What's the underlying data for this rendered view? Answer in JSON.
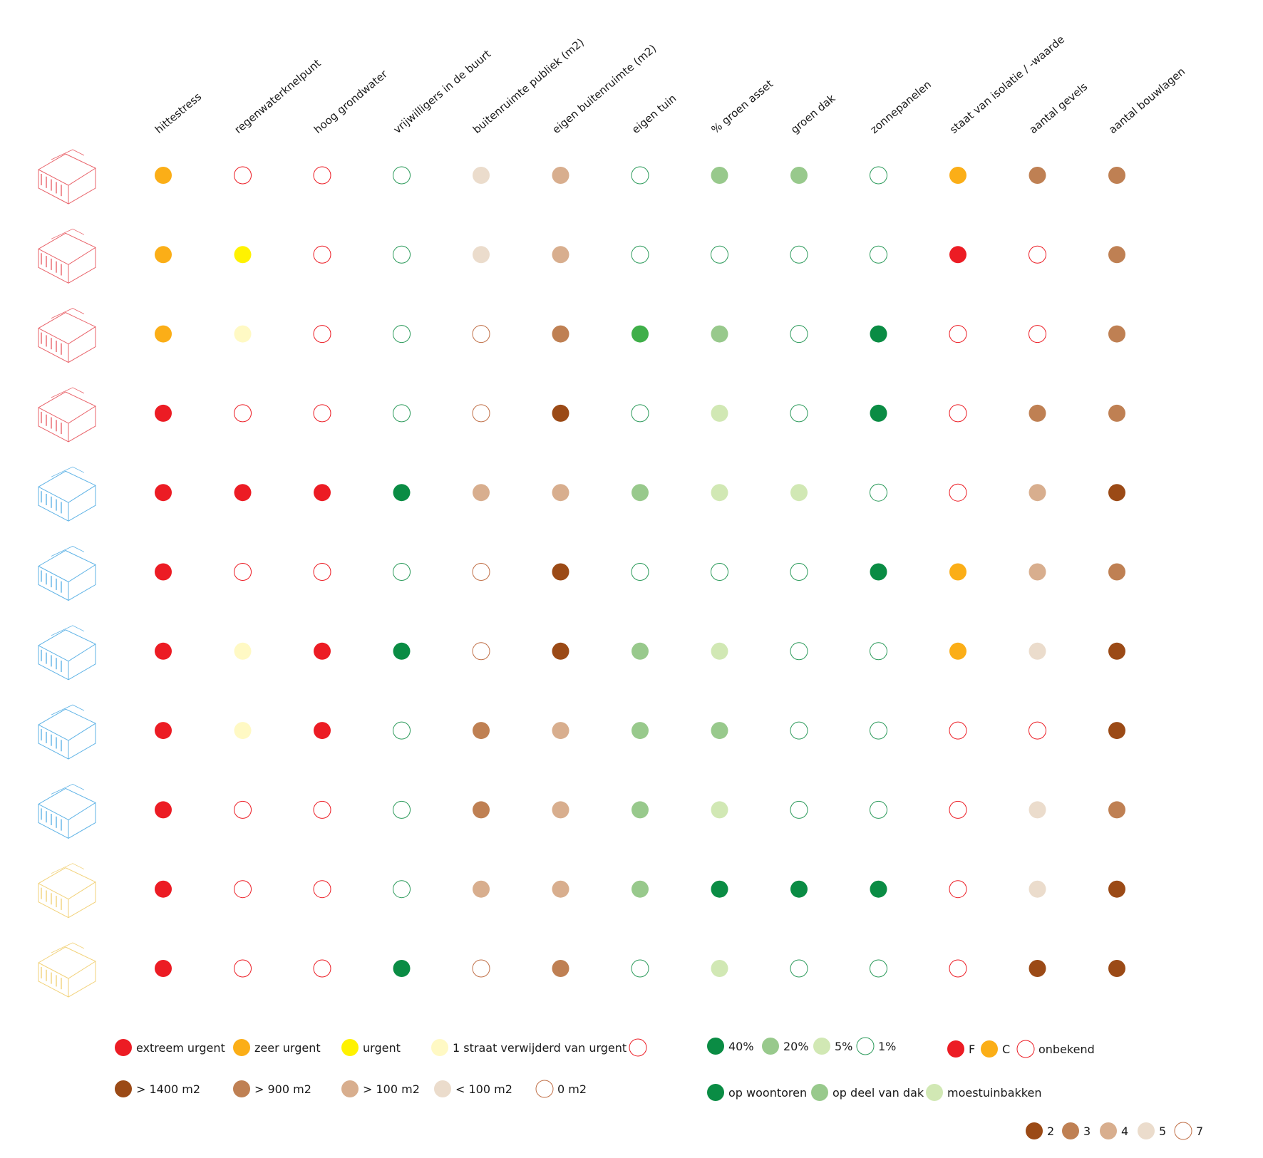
{
  "colors": {
    "red": "#ec1c24",
    "orange": "#fbae17",
    "yellow": "#fff200",
    "paleYellow": "#fff9c4",
    "brown1": "#9b4a16",
    "brown2": "#bf8053",
    "brown3": "#d8ae8e",
    "brown4": "#ebdccc",
    "green1": "#0a8c44",
    "green2": "#98c98c",
    "green3": "#d1e8b4",
    "greenBright": "#3faf49",
    "outlineRed": "#ec1c24",
    "outlineGreen": "#2b9a5a",
    "outlineBrown": "#c07048",
    "buildingRed": "#e9636a",
    "buildingBlue": "#5fb3e6",
    "buildingYellow": "#f2d27a"
  },
  "headers": [
    "hittestress",
    "regenwaterknelpunt",
    "hoog grondwater",
    "vrijwilligers in de buurt",
    "buitenruimte publiek (m2)",
    "eigen buitenruimte (m2)",
    "eigen tuin",
    "% groen asset",
    "groen dak",
    "zonnepanelen",
    "staat van isolatie / -waarde",
    "aantal gevels",
    "aantal bouwlagen"
  ],
  "chart_data": {
    "type": "heatmap",
    "columns": [
      "hittestress",
      "regenwaterknelpunt",
      "hoog grondwater",
      "vrijwilligers in de buurt",
      "buitenruimte publiek (m2)",
      "eigen buitenruimte (m2)",
      "eigen tuin",
      "% groen asset",
      "groen dak",
      "zonnepanelen",
      "staat van isolatie / -waarde",
      "aantal gevels",
      "aantal bouwlagen"
    ],
    "rows": [
      {
        "building": "red",
        "values": [
          "orange",
          "outlineRed",
          "outlineRed",
          "outlineGreen",
          "brown4",
          "brown3",
          "outlineGreen",
          "green2",
          "green2",
          "outlineGreen",
          "orange",
          "brown2",
          "brown2"
        ]
      },
      {
        "building": "red",
        "values": [
          "orange",
          "yellow",
          "outlineRed",
          "outlineGreen",
          "brown4",
          "brown3",
          "outlineGreen",
          "outlineGreen",
          "outlineGreen",
          "outlineGreen",
          "red",
          "outlineRed",
          "brown2"
        ]
      },
      {
        "building": "red",
        "values": [
          "orange",
          "paleYellow",
          "outlineRed",
          "outlineGreen",
          "outlineBrown",
          "brown2",
          "greenBright",
          "green2",
          "outlineGreen",
          "green1",
          "outlineRed",
          "outlineRed",
          "brown2"
        ]
      },
      {
        "building": "red",
        "values": [
          "red",
          "outlineRed",
          "outlineRed",
          "outlineGreen",
          "outlineBrown",
          "brown1",
          "outlineGreen",
          "green3",
          "outlineGreen",
          "green1",
          "outlineRed",
          "brown2",
          "brown2"
        ]
      },
      {
        "building": "blue",
        "values": [
          "red",
          "red",
          "red",
          "green1",
          "brown3",
          "brown3",
          "green2",
          "green3",
          "green3",
          "outlineGreen",
          "outlineRed",
          "brown3",
          "brown1"
        ]
      },
      {
        "building": "blue",
        "values": [
          "red",
          "outlineRed",
          "outlineRed",
          "outlineGreen",
          "outlineBrown",
          "brown1",
          "outlineGreen",
          "outlineGreen",
          "outlineGreen",
          "green1",
          "orange",
          "brown3",
          "brown2"
        ]
      },
      {
        "building": "blue",
        "values": [
          "red",
          "paleYellow",
          "red",
          "green1",
          "outlineBrown",
          "brown1",
          "green2",
          "green3",
          "outlineGreen",
          "outlineGreen",
          "orange",
          "brown4",
          "brown1"
        ]
      },
      {
        "building": "blue",
        "values": [
          "red",
          "paleYellow",
          "red",
          "outlineGreen",
          "brown2",
          "brown3",
          "green2",
          "green2",
          "outlineGreen",
          "outlineGreen",
          "outlineRed",
          "outlineRed",
          "brown1"
        ]
      },
      {
        "building": "blue",
        "values": [
          "red",
          "outlineRed",
          "outlineRed",
          "outlineGreen",
          "brown2",
          "brown3",
          "green2",
          "green3",
          "outlineGreen",
          "outlineGreen",
          "outlineRed",
          "brown4",
          "brown2"
        ]
      },
      {
        "building": "yellow",
        "values": [
          "red",
          "outlineRed",
          "outlineRed",
          "outlineGreen",
          "brown3",
          "brown3",
          "green2",
          "green1",
          "green1",
          "green1",
          "outlineRed",
          "brown4",
          "brown1"
        ]
      },
      {
        "building": "yellow",
        "values": [
          "red",
          "outlineRed",
          "outlineRed",
          "green1",
          "outlineBrown",
          "brown2",
          "outlineGreen",
          "green3",
          "outlineGreen",
          "outlineGreen",
          "outlineRed",
          "brown1",
          "brown1"
        ]
      }
    ]
  },
  "legend": {
    "urgency": [
      {
        "color": "red",
        "label": "extreem urgent"
      },
      {
        "color": "orange",
        "label": "zeer urgent"
      },
      {
        "color": "yellow",
        "label": "urgent"
      },
      {
        "color": "paleYellow",
        "label": "1 straat verwijderd van urgent"
      },
      {
        "color": "outlineRed",
        "label": ""
      }
    ],
    "area": [
      {
        "color": "brown1",
        "label": "> 1400 m2"
      },
      {
        "color": "brown2",
        "label": "> 900 m2"
      },
      {
        "color": "brown3",
        "label": "> 100 m2"
      },
      {
        "color": "brown4",
        "label": "< 100 m2"
      },
      {
        "color": "outlineBrown",
        "label": "0 m2"
      }
    ],
    "green_pct": [
      {
        "color": "green1",
        "label": "40%"
      },
      {
        "color": "green2",
        "label": "20%"
      },
      {
        "color": "green3",
        "label": "5%"
      },
      {
        "color": "outlineGreen",
        "label": "1%"
      }
    ],
    "green_roof": [
      {
        "color": "green1",
        "label": "op woontoren"
      },
      {
        "color": "green2",
        "label": "op deel van dak"
      },
      {
        "color": "green3",
        "label": "moestuinbakken"
      }
    ],
    "insulation": [
      {
        "color": "red",
        "label": "F"
      },
      {
        "color": "orange",
        "label": "C"
      },
      {
        "color": "outlineRed",
        "label": "onbekend"
      }
    ],
    "layers": [
      {
        "color": "brown1",
        "label": "2"
      },
      {
        "color": "brown2",
        "label": "3"
      },
      {
        "color": "brown3",
        "label": "4"
      },
      {
        "color": "brown4",
        "label": "5"
      },
      {
        "color": "outlineBrown",
        "label": "7"
      }
    ]
  }
}
